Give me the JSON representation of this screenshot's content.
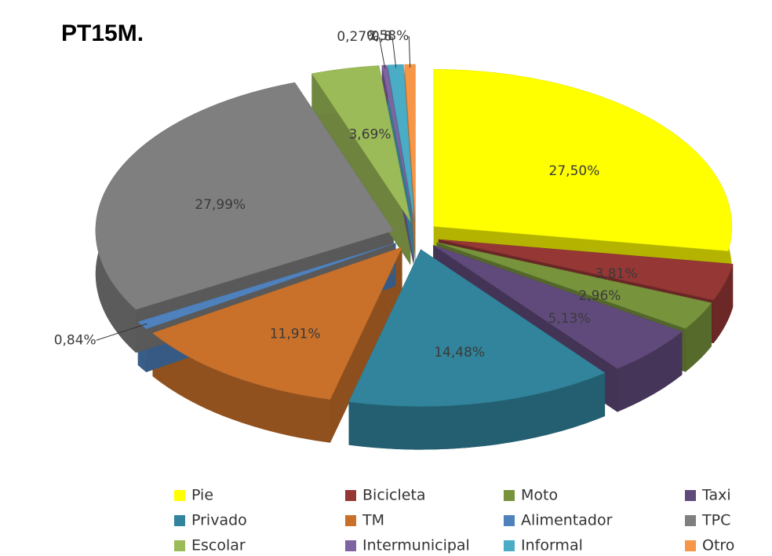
{
  "chart_data": {
    "type": "pie",
    "title": "PT15M.",
    "categories": [
      "Pie",
      "Bicicleta",
      "Moto",
      "Taxi",
      "Privado",
      "TM",
      "Alimentador",
      "TPC",
      "Escolar",
      "Intermunicipal",
      "Informal",
      "Otro"
    ],
    "values": [
      27.5,
      3.81,
      2.96,
      5.13,
      14.48,
      11.91,
      0.84,
      27.99,
      3.69,
      0.27,
      0.84,
      0.58
    ],
    "value_labels": [
      "27,50%",
      "3,81%",
      "2,96%",
      "5,13%",
      "14,48%",
      "11,91%",
      "0,84%",
      "27,99%",
      "3,69%",
      "0,27%",
      "0,8",
      "0,58%"
    ],
    "colors": [
      "#ffff00",
      "#953735",
      "#77933c",
      "#604a7b",
      "#31849b",
      "#c9712b",
      "#4f81bd",
      "#7f7f7f",
      "#9bbb59",
      "#8064a2",
      "#4bacc6",
      "#f79646"
    ],
    "legend": "bottom"
  }
}
